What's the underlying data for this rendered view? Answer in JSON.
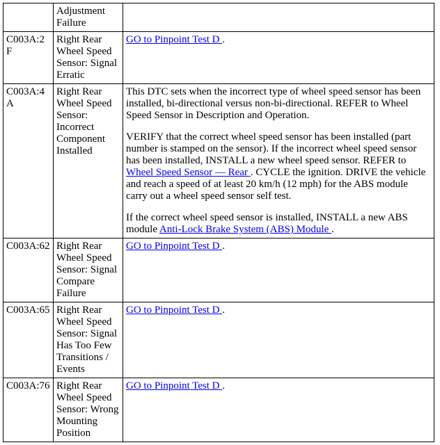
{
  "pinpoint_link_text": "GO to Pinpoint Test D ",
  "wheel_speed_sensor_rear_link": "Wheel Speed Sensor — Rear ",
  "abs_module_link": "Anti-Lock Brake System (ABS) Module ",
  "rows": {
    "r0": {
      "code": "",
      "desc": "Adjustment Failure"
    },
    "r1": {
      "code": "C003A:2F",
      "desc": "Right Rear Wheel Speed Sensor: Signal Erratic"
    },
    "r2": {
      "code": "C003A:4A",
      "desc": "Right Rear Wheel Speed Sensor: Incorrect Component Installed",
      "p1": "This DTC sets when the incorrect type of wheel speed sensor has been installed, bi-directional versus non-bi-directional. REFER to Wheel Speed Sensor in Description and Operation.",
      "p2a": "VERIFY that the correct wheel speed sensor has been installed (part number is stamped on the sensor). If the incorrect wheel speed sensor has been installed, INSTALL a new wheel speed sensor. REFER to ",
      "p2b": ". CYCLE the ignition. DRIVE the vehicle and reach a speed of at least 20 km/h (12 mph) for the ABS module carry out a wheel speed sensor self test.",
      "p3a": "If the correct wheel speed sensor is installed, INSTALL a new ABS module ",
      "p3b": "."
    },
    "r3": {
      "code": "C003A:62",
      "desc": "Right Rear Wheel Speed Sensor: Signal Compare Failure"
    },
    "r4": {
      "code": "C003A:65",
      "desc": "Right Rear Wheel Speed Sensor: Signal Has Too Few Transitions / Events"
    },
    "r5": {
      "code": "C003A:76",
      "desc": "Right Rear Wheel Speed Sensor: Wrong Mounting Position"
    }
  }
}
